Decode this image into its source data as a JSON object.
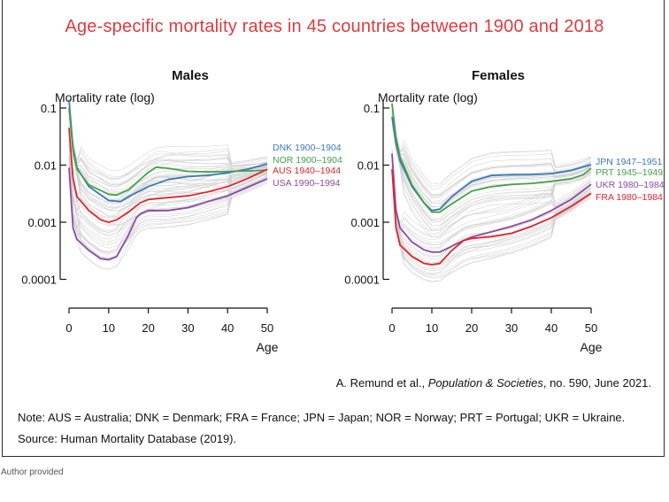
{
  "title": "Age-specific mortality rates in 45 countries between 1900 and 2018",
  "credit": {
    "authors": "A. Remund et al., ",
    "journal": "Population & Societies",
    "details": ", no. 590, June 2021."
  },
  "note": "Note: AUS = Australia; DNK = Denmark; FRA = France; JPN = Japan; NOR = Norway; PRT = Portugal; UKR = Ukraine.",
  "source": "Source: Human Mortality Database (2019).",
  "caption": "Author provided",
  "cutoff_text": "",
  "colors": {
    "title": "#e0393e",
    "blue": "#3b78b8",
    "green": "#45a24a",
    "red": "#e0262c",
    "purple": "#8b4aa6",
    "background_lines": "#c9c9c9"
  },
  "chart_data": [
    {
      "type": "line",
      "title": "Males",
      "ylabel": "Mortality rate (log)",
      "xlabel": "Age",
      "x_ticks": [
        0,
        10,
        20,
        30,
        40,
        50
      ],
      "xlim": [
        0,
        50
      ],
      "y_scale": "log",
      "y_ticks": [
        "0.1",
        "0.01",
        "0.001",
        "0.0001"
      ],
      "y_tick_values": [
        0.1,
        0.01,
        0.001,
        0.0001
      ],
      "background": "45 countries, 1900–2018 (light grey lines)",
      "series": [
        {
          "name": "DNK 1900–1904",
          "color": "#3b78b8",
          "x": [
            0,
            1,
            2,
            5,
            10,
            13,
            15,
            20,
            25,
            30,
            35,
            40,
            45,
            50
          ],
          "y": [
            0.14,
            0.02,
            0.009,
            0.0042,
            0.0024,
            0.0023,
            0.0028,
            0.0042,
            0.0056,
            0.0063,
            0.0066,
            0.0073,
            0.0085,
            0.0105
          ]
        },
        {
          "name": "NOR 1900–1904",
          "color": "#45a24a",
          "x": [
            0,
            1,
            2,
            5,
            10,
            12,
            15,
            20,
            22,
            25,
            30,
            35,
            40,
            45,
            50
          ],
          "y": [
            0.1,
            0.018,
            0.0085,
            0.0045,
            0.0031,
            0.003,
            0.0037,
            0.0075,
            0.0092,
            0.0088,
            0.0078,
            0.0076,
            0.0077,
            0.0079,
            0.0082
          ]
        },
        {
          "name": "AUS 1940–1944",
          "color": "#e0262c",
          "x": [
            0,
            1,
            2,
            5,
            8,
            10,
            12,
            15,
            18,
            20,
            25,
            30,
            35,
            40,
            45,
            50
          ],
          "y": [
            0.045,
            0.006,
            0.0028,
            0.0016,
            0.0011,
            0.001,
            0.0011,
            0.0015,
            0.0022,
            0.0025,
            0.0027,
            0.0029,
            0.0034,
            0.0042,
            0.0058,
            0.0085
          ]
        },
        {
          "name": "USA 1990–1994",
          "color": "#8b4aa6",
          "x": [
            0,
            1,
            2,
            5,
            8,
            10,
            12,
            15,
            17,
            18,
            20,
            25,
            30,
            35,
            40,
            45,
            50
          ],
          "y": [
            0.009,
            0.0008,
            0.0005,
            0.00032,
            0.00023,
            0.00022,
            0.00025,
            0.0006,
            0.0012,
            0.0014,
            0.0016,
            0.0016,
            0.0018,
            0.0023,
            0.0029,
            0.0041,
            0.0058
          ]
        }
      ]
    },
    {
      "type": "line",
      "title": "Females",
      "ylabel": "Mortality rate (log)",
      "xlabel": "Age",
      "x_ticks": [
        0,
        10,
        20,
        30,
        40,
        50
      ],
      "xlim": [
        0,
        50
      ],
      "y_scale": "log",
      "y_ticks": [
        "0.1",
        "0.01",
        "0.001",
        "0.0001"
      ],
      "y_tick_values": [
        0.1,
        0.01,
        0.001,
        0.0001
      ],
      "background": "45 countries, 1900–2018 (light grey lines)",
      "series": [
        {
          "name": "JPN 1947–1951",
          "color": "#3b78b8",
          "x": [
            0,
            1,
            2,
            5,
            8,
            10,
            12,
            15,
            20,
            25,
            30,
            35,
            40,
            45,
            50
          ],
          "y": [
            0.07,
            0.024,
            0.012,
            0.0042,
            0.0022,
            0.0016,
            0.0017,
            0.0028,
            0.0052,
            0.0066,
            0.0068,
            0.0068,
            0.0071,
            0.0081,
            0.0102
          ]
        },
        {
          "name": "PRT 1945–1949",
          "color": "#45a24a",
          "x": [
            0,
            1,
            2,
            5,
            8,
            10,
            12,
            15,
            20,
            25,
            30,
            35,
            40,
            45,
            48,
            50
          ],
          "y": [
            0.12,
            0.03,
            0.014,
            0.0045,
            0.0022,
            0.0015,
            0.0015,
            0.0021,
            0.0035,
            0.0042,
            0.0046,
            0.0048,
            0.0052,
            0.0058,
            0.0068,
            0.0088
          ]
        },
        {
          "name": "UKR 1980–1984",
          "color": "#8b4aa6",
          "x": [
            0,
            1,
            2,
            5,
            8,
            10,
            12,
            15,
            18,
            20,
            25,
            30,
            35,
            40,
            45,
            50
          ],
          "y": [
            0.016,
            0.0016,
            0.0008,
            0.00045,
            0.00033,
            0.0003,
            0.0003,
            0.00038,
            0.00048,
            0.00055,
            0.00068,
            0.00085,
            0.0011,
            0.0016,
            0.0025,
            0.0046
          ]
        },
        {
          "name": "FRA 1980–1984",
          "color": "#e0262c",
          "x": [
            0,
            1,
            2,
            5,
            8,
            10,
            12,
            15,
            18,
            20,
            25,
            30,
            35,
            40,
            45,
            50
          ],
          "y": [
            0.0085,
            0.0008,
            0.0004,
            0.00025,
            0.00019,
            0.00018,
            0.00019,
            0.00032,
            0.00048,
            0.00052,
            0.00056,
            0.00064,
            0.00085,
            0.0012,
            0.0019,
            0.0032
          ]
        }
      ]
    }
  ]
}
